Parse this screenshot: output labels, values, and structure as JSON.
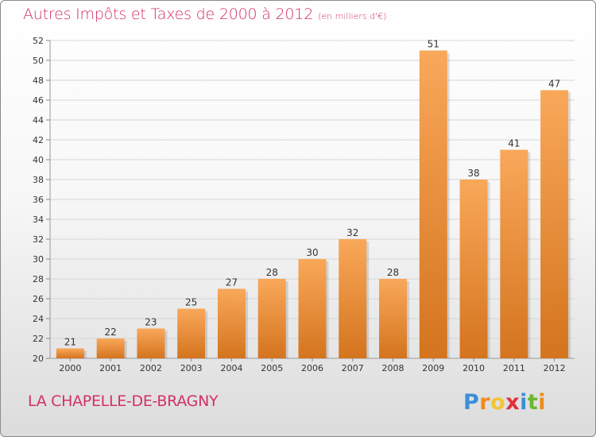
{
  "chart_data": {
    "type": "bar",
    "title": "Autres Impôts et Taxes de 2000 à 2012",
    "unit_note": "(en milliers d'€)",
    "categories": [
      "2000",
      "2001",
      "2002",
      "2003",
      "2004",
      "2005",
      "2006",
      "2007",
      "2008",
      "2009",
      "2010",
      "2011",
      "2012"
    ],
    "values": [
      21,
      22,
      23,
      25,
      27,
      28,
      30,
      32,
      28,
      51,
      38,
      41,
      47
    ],
    "ylim": [
      20,
      52
    ],
    "yticks": [
      20,
      22,
      24,
      26,
      28,
      30,
      32,
      34,
      36,
      38,
      40,
      42,
      44,
      46,
      48,
      50,
      52
    ],
    "grid": true,
    "bar_color_top": "#f9a85a",
    "bar_color_bottom": "#d4741e"
  },
  "footer": {
    "commune": "LA CHAPELLE-DE-BRAGNY",
    "logo_letters": [
      "P",
      "r",
      "o",
      "x",
      "i",
      "t",
      "i"
    ],
    "logo_colors": [
      "#3a8fd6",
      "#f08a1c",
      "#f4c430",
      "#e0303a",
      "#3a8fd6",
      "#6ab82e",
      "#f08a1c"
    ]
  },
  "colors": {
    "accent": "#d3306a",
    "grid": "#d6d6d6"
  }
}
